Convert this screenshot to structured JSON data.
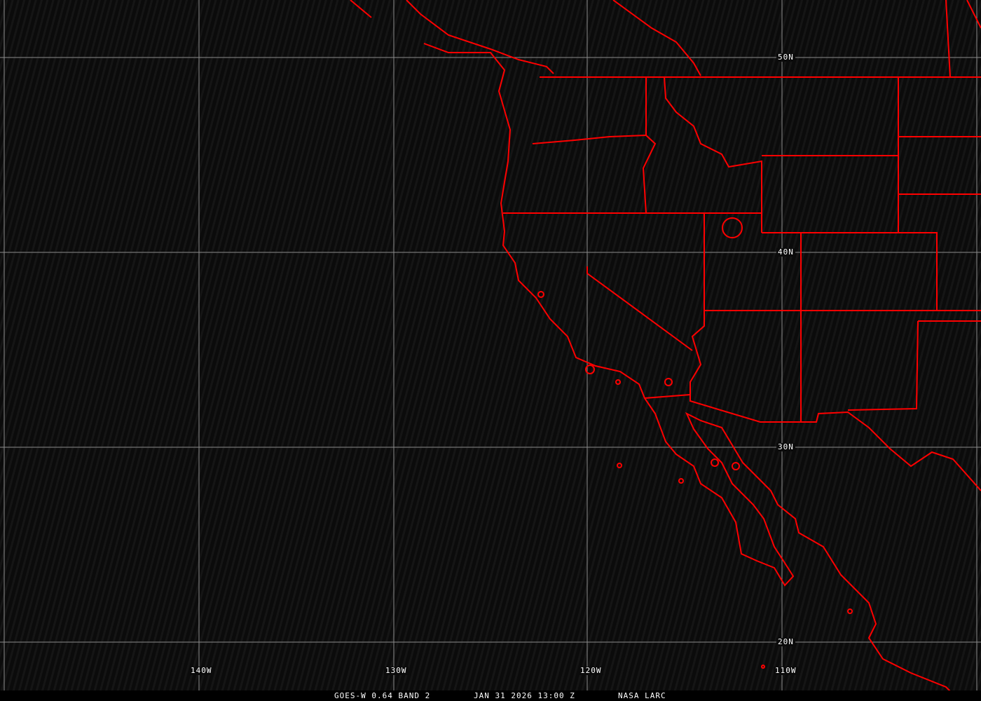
{
  "map": {
    "lon_labels": [
      "140W",
      "130W",
      "120W",
      "110W"
    ],
    "lat_labels": [
      "50N",
      "40N",
      "30N",
      "20N"
    ],
    "colors": {
      "background": "#0b0b0b",
      "grid": "#8c8c8c",
      "borders": "#ff0000",
      "text": "#ffffff"
    }
  },
  "caption": {
    "product": "GOES-W 0.64 BAND 2",
    "datetime": "JAN 31 2026 13:00 Z",
    "source": "NASA LARC"
  }
}
